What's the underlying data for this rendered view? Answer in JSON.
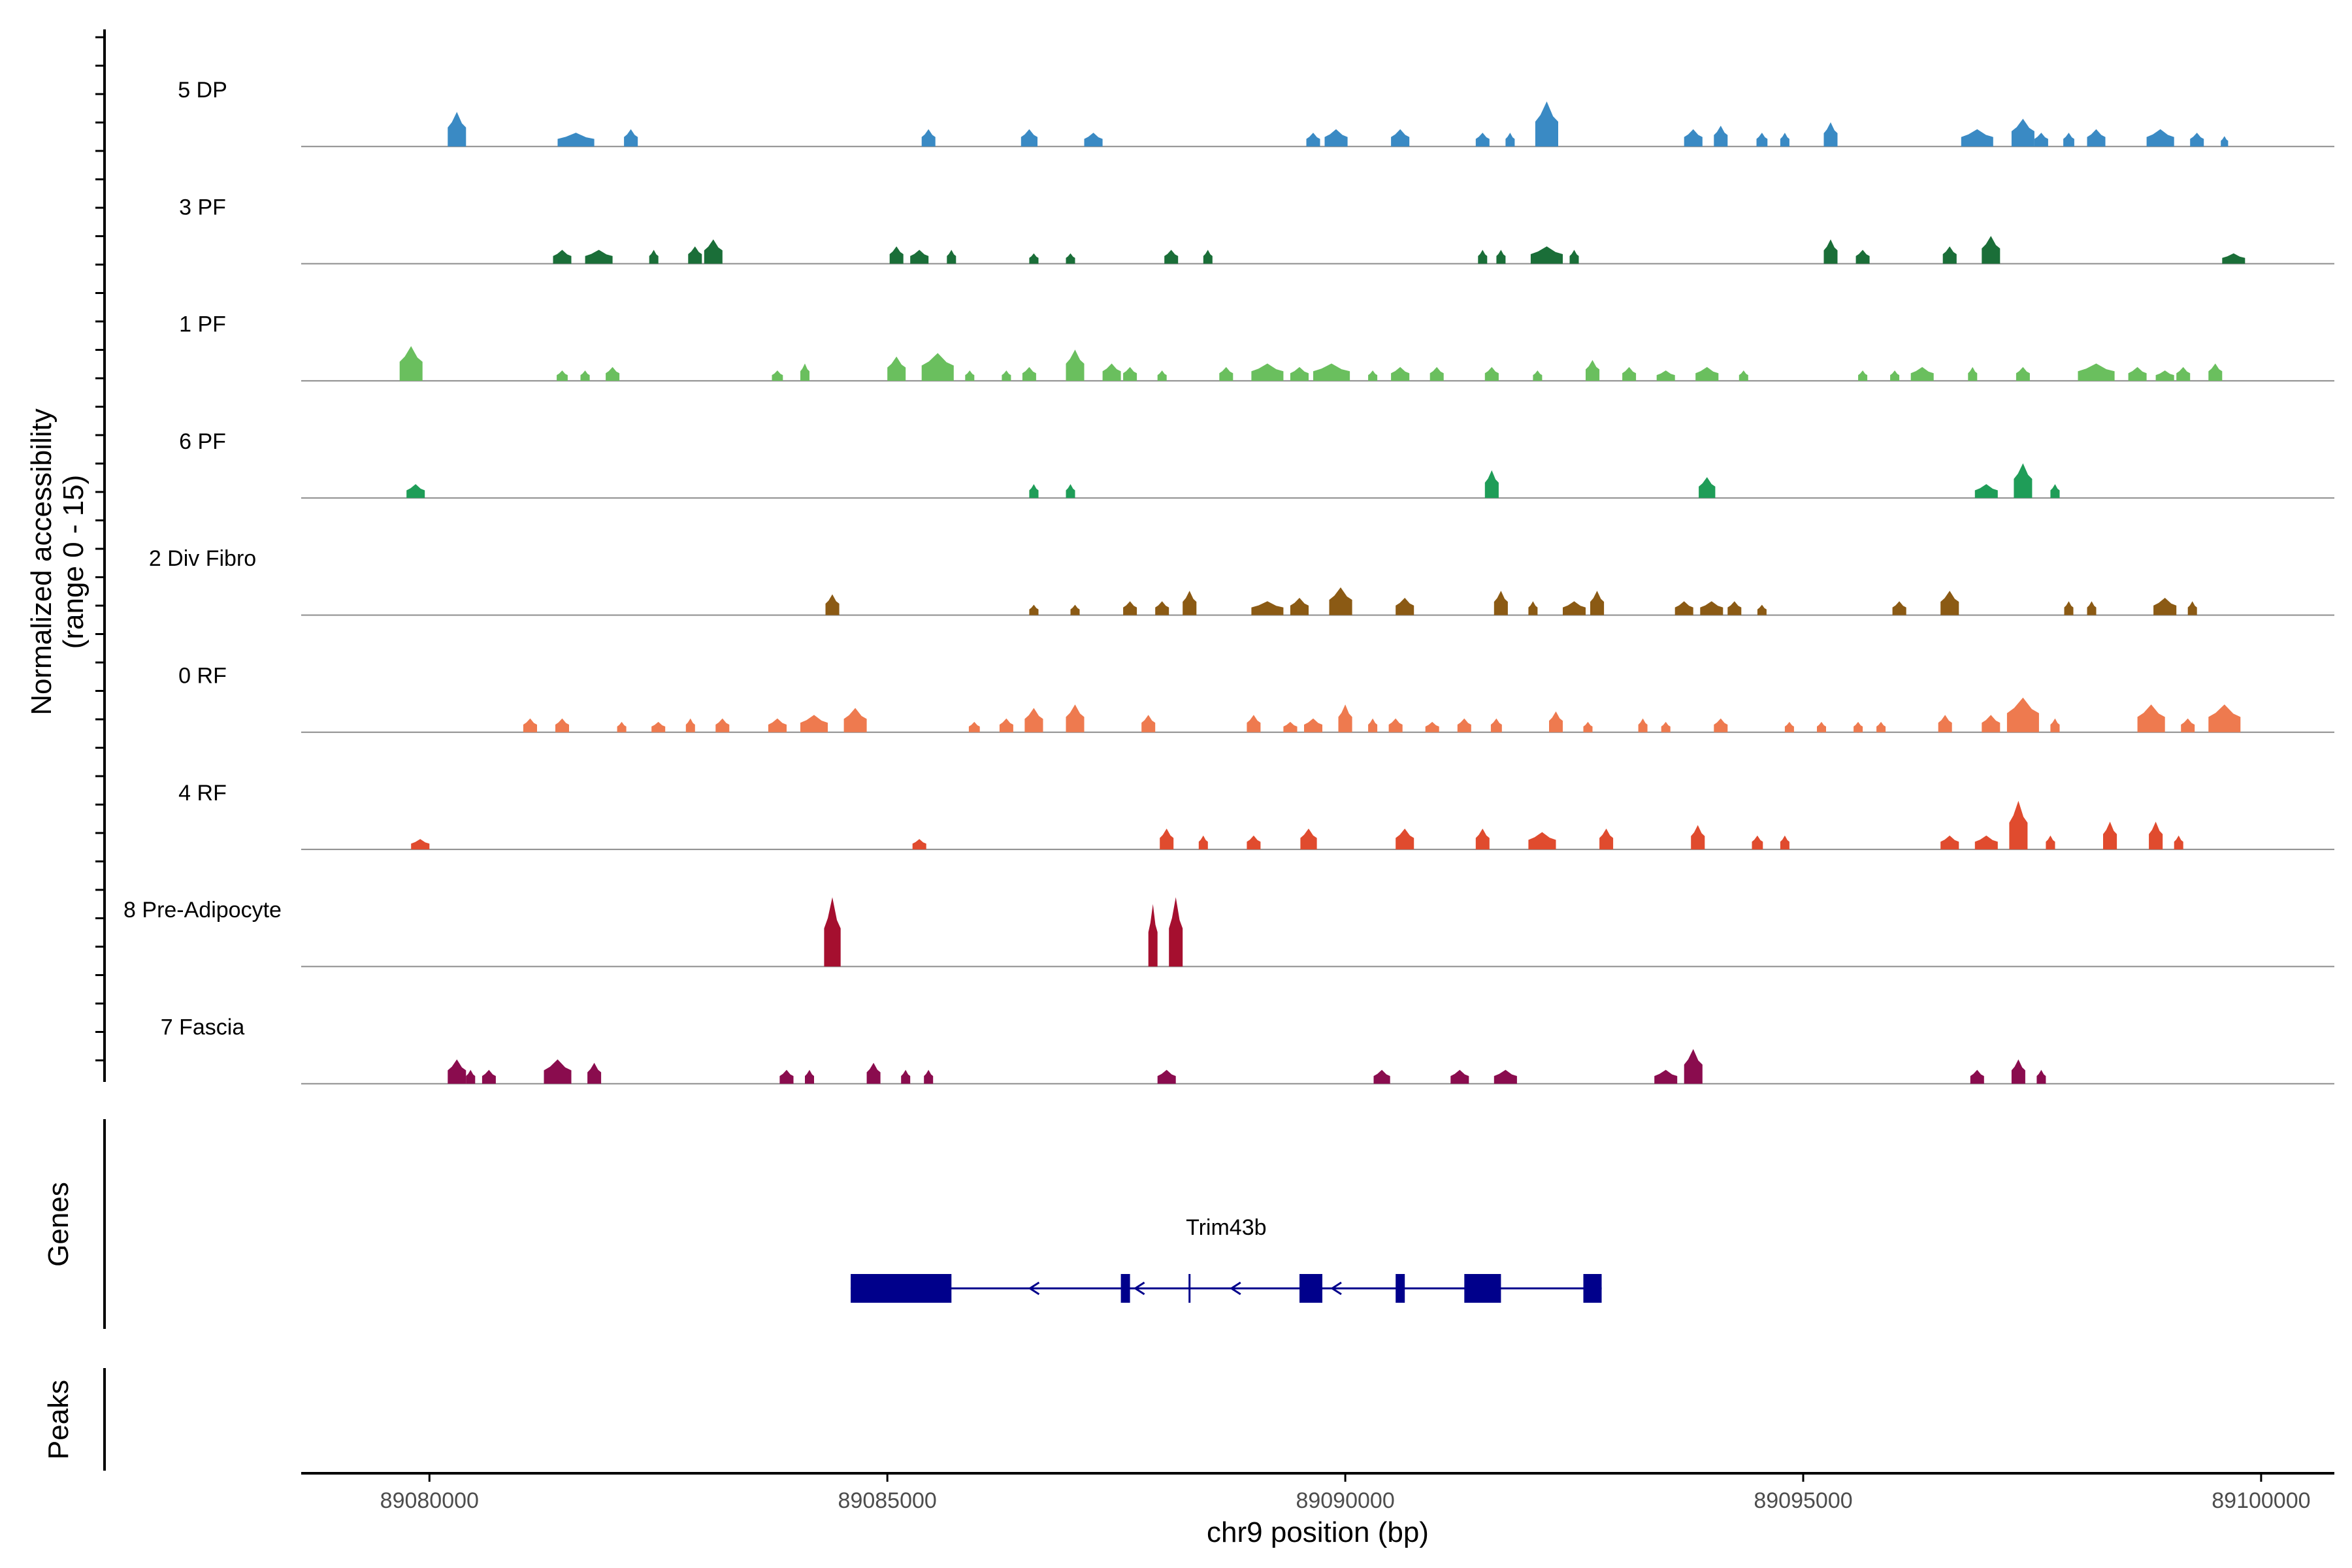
{
  "chart_data": {
    "type": "area",
    "title": "",
    "ylabel": "Normalized accessibility",
    "ylabel_range": "(range 0 - 15)",
    "ylim": [
      0,
      15
    ],
    "xlabel": "chr9 position (bp)",
    "xlim": [
      89078600,
      89100800
    ],
    "x_ticks": [
      {
        "value": 89080000,
        "label": "89080000"
      },
      {
        "value": 89085000,
        "label": "89085000"
      },
      {
        "value": 89090000,
        "label": "89090000"
      },
      {
        "value": 89095000,
        "label": "89095000"
      },
      {
        "value": 89100000,
        "label": "89100000"
      }
    ],
    "genes_label": "Genes",
    "peaks_label": "Peaks",
    "series": [
      {
        "name": "5 DP",
        "color": "#3a8ac4",
        "peaks": [
          [
            89080300,
            200,
            5
          ],
          [
            89081600,
            400,
            2
          ],
          [
            89082200,
            150,
            2.5
          ],
          [
            89085450,
            150,
            2.5
          ],
          [
            89086550,
            180,
            2.5
          ],
          [
            89087250,
            200,
            2
          ],
          [
            89089650,
            150,
            2
          ],
          [
            89089900,
            250,
            2.5
          ],
          [
            89090600,
            200,
            2.5
          ],
          [
            89091500,
            150,
            2
          ],
          [
            89091800,
            100,
            2
          ],
          [
            89092200,
            250,
            6.5
          ],
          [
            89093800,
            200,
            2.5
          ],
          [
            89094100,
            150,
            3
          ],
          [
            89094550,
            120,
            2
          ],
          [
            89094800,
            100,
            2
          ],
          [
            89095300,
            150,
            3.5
          ],
          [
            89096900,
            350,
            2.5
          ],
          [
            89097400,
            250,
            4
          ],
          [
            89097600,
            150,
            2
          ],
          [
            89097900,
            120,
            2
          ],
          [
            89098200,
            200,
            2.5
          ],
          [
            89098900,
            300,
            2.5
          ],
          [
            89099300,
            150,
            2
          ],
          [
            89099600,
            80,
            1.5
          ]
        ]
      },
      {
        "name": "3 PF",
        "color": "#1a6e38",
        "peaks": [
          [
            89081450,
            200,
            2
          ],
          [
            89081850,
            300,
            2
          ],
          [
            89082450,
            100,
            2
          ],
          [
            89082900,
            150,
            2.5
          ],
          [
            89083100,
            200,
            3.5
          ],
          [
            89085100,
            150,
            2.5
          ],
          [
            89085350,
            200,
            2
          ],
          [
            89085700,
            100,
            2
          ],
          [
            89086600,
            100,
            1.5
          ],
          [
            89087000,
            100,
            1.5
          ],
          [
            89088100,
            150,
            2
          ],
          [
            89088500,
            100,
            2
          ],
          [
            89091500,
            100,
            2
          ],
          [
            89091700,
            100,
            2
          ],
          [
            89092200,
            350,
            2.5
          ],
          [
            89092500,
            100,
            2
          ],
          [
            89095300,
            150,
            3.5
          ],
          [
            89095650,
            150,
            2
          ],
          [
            89096600,
            150,
            2.5
          ],
          [
            89097050,
            200,
            4
          ],
          [
            89099700,
            250,
            1.5
          ]
        ]
      },
      {
        "name": "1 PF",
        "color": "#6abf5e",
        "peaks": [
          [
            89079800,
            250,
            5
          ],
          [
            89081450,
            120,
            1.5
          ],
          [
            89081700,
            100,
            1.5
          ],
          [
            89082000,
            150,
            2
          ],
          [
            89083800,
            120,
            1.5
          ],
          [
            89084100,
            100,
            2.5
          ],
          [
            89085100,
            200,
            3.5
          ],
          [
            89085550,
            350,
            4
          ],
          [
            89085900,
            100,
            1.5
          ],
          [
            89086300,
            100,
            1.5
          ],
          [
            89086550,
            150,
            2
          ],
          [
            89087050,
            200,
            4.5
          ],
          [
            89087450,
            200,
            2.5
          ],
          [
            89087650,
            150,
            2
          ],
          [
            89088000,
            100,
            1.5
          ],
          [
            89088700,
            150,
            2
          ],
          [
            89089150,
            350,
            2.5
          ],
          [
            89089500,
            200,
            2
          ],
          [
            89089850,
            400,
            2.5
          ],
          [
            89090300,
            100,
            1.5
          ],
          [
            89090600,
            200,
            2
          ],
          [
            89091000,
            150,
            2
          ],
          [
            89091600,
            150,
            2
          ],
          [
            89092100,
            100,
            1.5
          ],
          [
            89092700,
            150,
            3
          ],
          [
            89093100,
            150,
            2
          ],
          [
            89093500,
            200,
            1.5
          ],
          [
            89093950,
            250,
            2
          ],
          [
            89094350,
            100,
            1.5
          ],
          [
            89095650,
            100,
            1.5
          ],
          [
            89096000,
            100,
            1.5
          ],
          [
            89096300,
            250,
            2
          ],
          [
            89096850,
            100,
            2
          ],
          [
            89097400,
            150,
            2
          ],
          [
            89098200,
            400,
            2.5
          ],
          [
            89098650,
            200,
            2
          ],
          [
            89098950,
            200,
            1.5
          ],
          [
            89099150,
            150,
            2
          ],
          [
            89099500,
            150,
            2.5
          ]
        ]
      },
      {
        "name": "6 PF",
        "color": "#1f9d58",
        "peaks": [
          [
            89079850,
            200,
            2
          ],
          [
            89086600,
            100,
            2
          ],
          [
            89087000,
            100,
            2
          ],
          [
            89091600,
            150,
            4
          ],
          [
            89093950,
            180,
            3
          ],
          [
            89097000,
            250,
            2
          ],
          [
            89097400,
            200,
            5
          ],
          [
            89097750,
            100,
            2
          ]
        ]
      },
      {
        "name": "2 Div Fibro",
        "color": "#8b5a14",
        "peaks": [
          [
            89084400,
            150,
            3
          ],
          [
            89086600,
            100,
            1.5
          ],
          [
            89087050,
            100,
            1.5
          ],
          [
            89087650,
            150,
            2
          ],
          [
            89088000,
            150,
            2
          ],
          [
            89088300,
            150,
            3.5
          ],
          [
            89089150,
            350,
            2
          ],
          [
            89089500,
            200,
            2.5
          ],
          [
            89089950,
            250,
            4
          ],
          [
            89090650,
            200,
            2.5
          ],
          [
            89091700,
            150,
            3.5
          ],
          [
            89092050,
            100,
            2
          ],
          [
            89092500,
            250,
            2
          ],
          [
            89092750,
            150,
            3.5
          ],
          [
            89093700,
            200,
            2
          ],
          [
            89094000,
            250,
            2
          ],
          [
            89094250,
            150,
            2
          ],
          [
            89094550,
            100,
            1.5
          ],
          [
            89096050,
            150,
            2
          ],
          [
            89096600,
            200,
            3.5
          ],
          [
            89097900,
            100,
            2
          ],
          [
            89098150,
            100,
            2
          ],
          [
            89098950,
            250,
            2.5
          ],
          [
            89099250,
            100,
            2
          ]
        ]
      },
      {
        "name": "0 RF",
        "color": "#ee7a4f",
        "peaks": [
          [
            89081100,
            150,
            2
          ],
          [
            89081450,
            150,
            2
          ],
          [
            89082100,
            100,
            1.5
          ],
          [
            89082500,
            150,
            1.5
          ],
          [
            89082850,
            100,
            2
          ],
          [
            89083200,
            150,
            2
          ],
          [
            89083800,
            200,
            2
          ],
          [
            89084200,
            300,
            2.5
          ],
          [
            89084650,
            250,
            3.5
          ],
          [
            89085950,
            120,
            1.5
          ],
          [
            89086300,
            150,
            2
          ],
          [
            89086600,
            200,
            3.5
          ],
          [
            89087050,
            200,
            4
          ],
          [
            89087850,
            150,
            2.5
          ],
          [
            89089000,
            150,
            2.5
          ],
          [
            89089400,
            150,
            1.5
          ],
          [
            89089650,
            200,
            2
          ],
          [
            89090000,
            150,
            4
          ],
          [
            89090300,
            100,
            2
          ],
          [
            89090550,
            150,
            2
          ],
          [
            89090950,
            150,
            1.5
          ],
          [
            89091300,
            150,
            2
          ],
          [
            89091650,
            120,
            2
          ],
          [
            89092300,
            150,
            3
          ],
          [
            89092650,
            100,
            1.5
          ],
          [
            89093250,
            100,
            2
          ],
          [
            89093500,
            100,
            1.5
          ],
          [
            89094100,
            150,
            2
          ],
          [
            89094850,
            100,
            1.5
          ],
          [
            89095200,
            100,
            1.5
          ],
          [
            89095600,
            100,
            1.5
          ],
          [
            89095850,
            100,
            1.5
          ],
          [
            89096550,
            150,
            2.5
          ],
          [
            89097050,
            200,
            2.5
          ],
          [
            89097400,
            350,
            5
          ],
          [
            89097750,
            100,
            2
          ],
          [
            89098800,
            300,
            4
          ],
          [
            89099200,
            150,
            2
          ],
          [
            89099600,
            350,
            4
          ]
        ]
      },
      {
        "name": "4 RF",
        "color": "#e04b2e",
        "peaks": [
          [
            89079900,
            200,
            1.5
          ],
          [
            89085350,
            150,
            1.5
          ],
          [
            89088050,
            150,
            3
          ],
          [
            89088450,
            100,
            2
          ],
          [
            89089000,
            150,
            2
          ],
          [
            89089600,
            180,
            3
          ],
          [
            89090650,
            200,
            3
          ],
          [
            89091500,
            150,
            3
          ],
          [
            89092150,
            300,
            2.5
          ],
          [
            89092850,
            150,
            3
          ],
          [
            89093850,
            150,
            3.5
          ],
          [
            89094500,
            120,
            2
          ],
          [
            89094800,
            100,
            2
          ],
          [
            89096600,
            200,
            2
          ],
          [
            89097000,
            250,
            2
          ],
          [
            89097350,
            200,
            7
          ],
          [
            89097700,
            100,
            2
          ],
          [
            89098350,
            150,
            4
          ],
          [
            89098850,
            150,
            4
          ],
          [
            89099100,
            100,
            2
          ]
        ]
      },
      {
        "name": "8 Pre-Adipocyte",
        "color": "#a50f2f",
        "peaks": [
          [
            89084400,
            180,
            10
          ],
          [
            89087900,
            100,
            9
          ],
          [
            89088150,
            150,
            10
          ]
        ]
      },
      {
        "name": "7 Fascia",
        "color": "#8a0c4e",
        "peaks": [
          [
            89080300,
            200,
            3.5
          ],
          [
            89080450,
            100,
            2
          ],
          [
            89080650,
            150,
            2
          ],
          [
            89081400,
            300,
            3.5
          ],
          [
            89081800,
            150,
            3
          ],
          [
            89083900,
            150,
            2
          ],
          [
            89084150,
            100,
            2
          ],
          [
            89084850,
            150,
            3
          ],
          [
            89085200,
            100,
            2
          ],
          [
            89085450,
            100,
            2
          ],
          [
            89088050,
            200,
            2
          ],
          [
            89090400,
            180,
            2
          ],
          [
            89091250,
            200,
            2
          ],
          [
            89091750,
            250,
            2
          ],
          [
            89093500,
            250,
            2
          ],
          [
            89093800,
            200,
            5
          ],
          [
            89096900,
            150,
            2
          ],
          [
            89097350,
            150,
            3.5
          ],
          [
            89097600,
            100,
            2
          ]
        ]
      }
    ],
    "gene": {
      "name": "Trim43b",
      "strand": "-",
      "start": 89084600,
      "end": 89092800,
      "exons": [
        [
          89084600,
          89085700
        ],
        [
          89087550,
          89087650
        ],
        [
          89089500,
          89089750
        ],
        [
          89090550,
          89090650
        ],
        [
          89091300,
          89091700
        ],
        [
          89092600,
          89092800
        ]
      ],
      "tick": 89088300,
      "arrows": [
        89086600,
        89087750,
        89088800,
        89089900
      ]
    }
  },
  "colors": {
    "baseline": "#8c8c8c",
    "axis": "#000000",
    "gene": "#00008b"
  }
}
